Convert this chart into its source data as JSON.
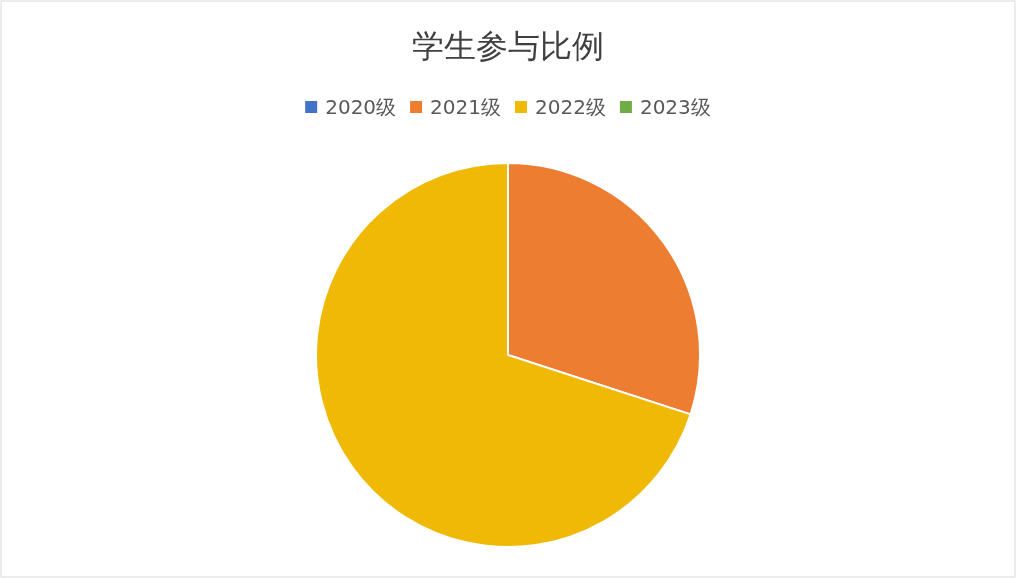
{
  "chart_data": {
    "type": "pie",
    "title": "学生参与比例",
    "categories": [
      "2020级",
      "2021级",
      "2022级",
      "2023级"
    ],
    "values": [
      0,
      30,
      70,
      0
    ],
    "colors": [
      "#4472c4",
      "#ed7d31",
      "#f0b905",
      "#70ad47"
    ],
    "legend": "top"
  }
}
